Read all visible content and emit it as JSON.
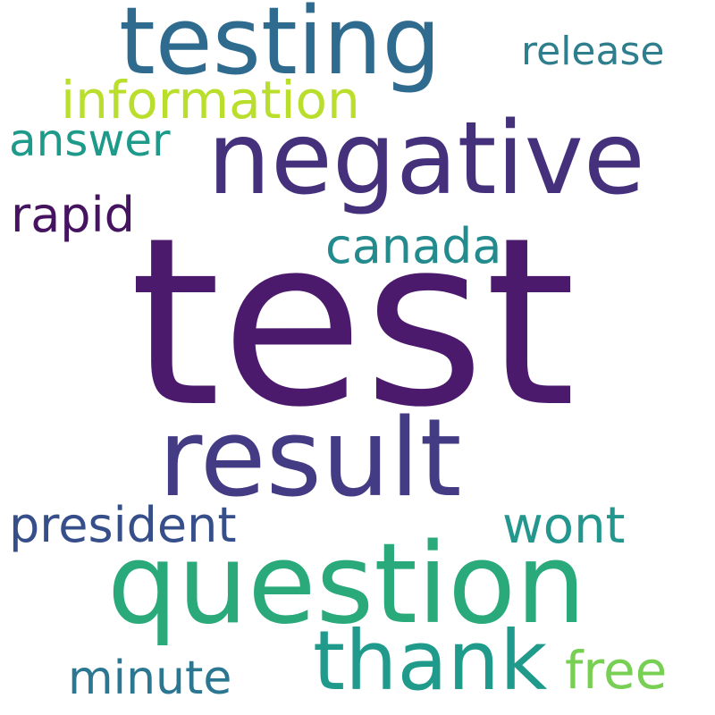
{
  "cloud": {
    "words": {
      "test": {
        "text": "test",
        "color": "#4b1a6d"
      },
      "negative": {
        "text": "negative",
        "color": "#45307c"
      },
      "testing": {
        "text": "testing",
        "color": "#2f6b8e"
      },
      "result": {
        "text": "result",
        "color": "#433b84"
      },
      "question": {
        "text": "question",
        "color": "#2aa97a"
      },
      "thank": {
        "text": "thank",
        "color": "#1f9a8b"
      },
      "information": {
        "text": "information",
        "color": "#b9de2b"
      },
      "release": {
        "text": "release",
        "color": "#2f7e8d"
      },
      "answer": {
        "text": "answer",
        "color": "#1d9a8a"
      },
      "rapid": {
        "text": "rapid",
        "color": "#45135f"
      },
      "canada": {
        "text": "canada",
        "color": "#238b8d"
      },
      "president": {
        "text": "president",
        "color": "#364f8b"
      },
      "wont": {
        "text": "wont",
        "color": "#23978d"
      },
      "minute": {
        "text": "minute",
        "color": "#2b7690"
      },
      "free": {
        "text": "free",
        "color": "#77cf53"
      }
    }
  }
}
